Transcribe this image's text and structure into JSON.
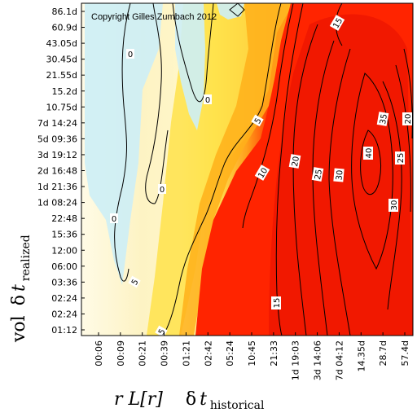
{
  "chart_data": {
    "type": "heatmap",
    "copyright": "Copyright Gilles Zumbach 2012",
    "ylabel_parts": {
      "pre": "vol",
      "delta": "δ",
      "var": "t",
      "sub": "realized"
    },
    "xlabel_parts": {
      "math": "r L[r]",
      "delta": "δ",
      "var": "t",
      "sub": "historical"
    },
    "x_ticks": [
      "00:06",
      "00:09",
      "00:21",
      "00:39",
      "01:21",
      "02:42",
      "05:24",
      "10:45",
      "21:33",
      "1d 19:03",
      "3d 14:06",
      "7d 04:12",
      "14.35d",
      "28.7d",
      "57.4d"
    ],
    "y_ticks": [
      "86.1d",
      "60.9d",
      "43.05d",
      "30.45d",
      "21.55d",
      "15.2d",
      "10.75d",
      "7d 14:24",
      "5d 09:36",
      "3d 19:12",
      "2d 16:48",
      "1d 21:36",
      "1d 08:24",
      "22:48",
      "15:36",
      "12:00",
      "06:00",
      "03:36",
      "02:24",
      "02:24",
      "01:12"
    ],
    "contour_levels": [
      0,
      5,
      10,
      15,
      20,
      25,
      30,
      35,
      40
    ],
    "contour_labels": [
      "0",
      "0",
      "0",
      "0",
      "5",
      "5",
      "5",
      "10",
      "15",
      "15",
      "20",
      "25",
      "30",
      "35",
      "40",
      "25",
      "30",
      "20"
    ],
    "colors": {
      "low": "#c8ecf4",
      "zero": "#ffffff",
      "mid": "#ffe85a",
      "high": "#ff2600",
      "top": "#e60000"
    }
  }
}
